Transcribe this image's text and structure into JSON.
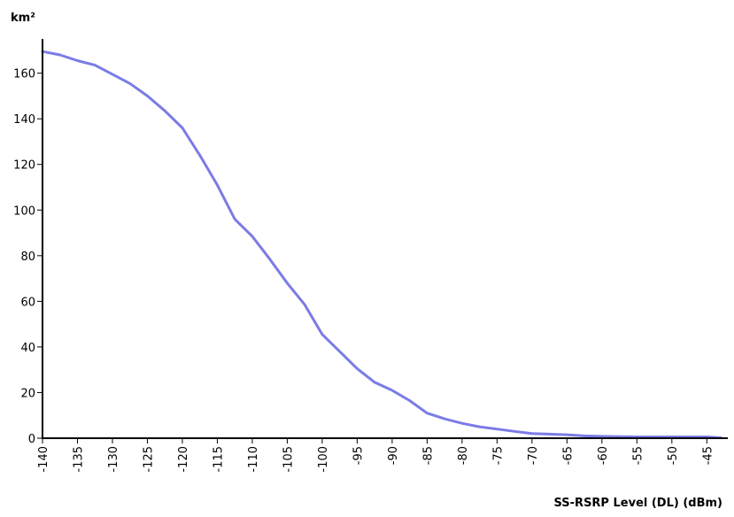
{
  "chart_data": {
    "type": "line",
    "title": "",
    "xlabel": "SS-RSRP Level (DL) (dBm)",
    "ylabel": "km²",
    "xlim": [
      -140,
      -42
    ],
    "ylim": [
      0,
      175
    ],
    "grid": false,
    "line_color": "#7b7be6",
    "x_ticks": [
      "-140",
      "-135",
      "-130",
      "-125",
      "-120",
      "-115",
      "-110",
      "-105",
      "-100",
      "-95",
      "-90",
      "-85",
      "-80",
      "-75",
      "-70",
      "-65",
      "-60",
      "-55",
      "-50",
      "-45"
    ],
    "y_ticks": [
      "0",
      "20",
      "40",
      "60",
      "80",
      "100",
      "120",
      "140",
      "160"
    ],
    "series": [
      {
        "x": [
          -140,
          -137.5,
          -135,
          -132.5,
          -130,
          -127.5,
          -125,
          -122.5,
          -120,
          -117.5,
          -115,
          -114,
          -112.5,
          -110,
          -107.5,
          -105,
          -102.5,
          -100,
          -97.5,
          -95,
          -92.5,
          -90,
          -87.5,
          -85,
          -82.5,
          -80,
          -77.5,
          -75,
          -72.5,
          -70,
          -67.5,
          -65,
          -62.5,
          -60,
          -57.5,
          -55,
          -52.5,
          -50,
          -47.5,
          -45,
          -43
        ],
        "y": [
          169.5,
          168,
          165.5,
          163.5,
          159.5,
          155.5,
          150,
          143.5,
          136,
          124,
          111,
          105,
          96,
          88.5,
          78.5,
          68,
          58.5,
          45.5,
          38,
          30.5,
          24.5,
          21,
          16.5,
          11,
          8.5,
          6.5,
          5,
          4,
          3,
          2,
          1.8,
          1.5,
          1,
          0.8,
          0.7,
          0.6,
          0.6,
          0.6,
          0.6,
          0.6,
          0.2
        ]
      }
    ]
  }
}
